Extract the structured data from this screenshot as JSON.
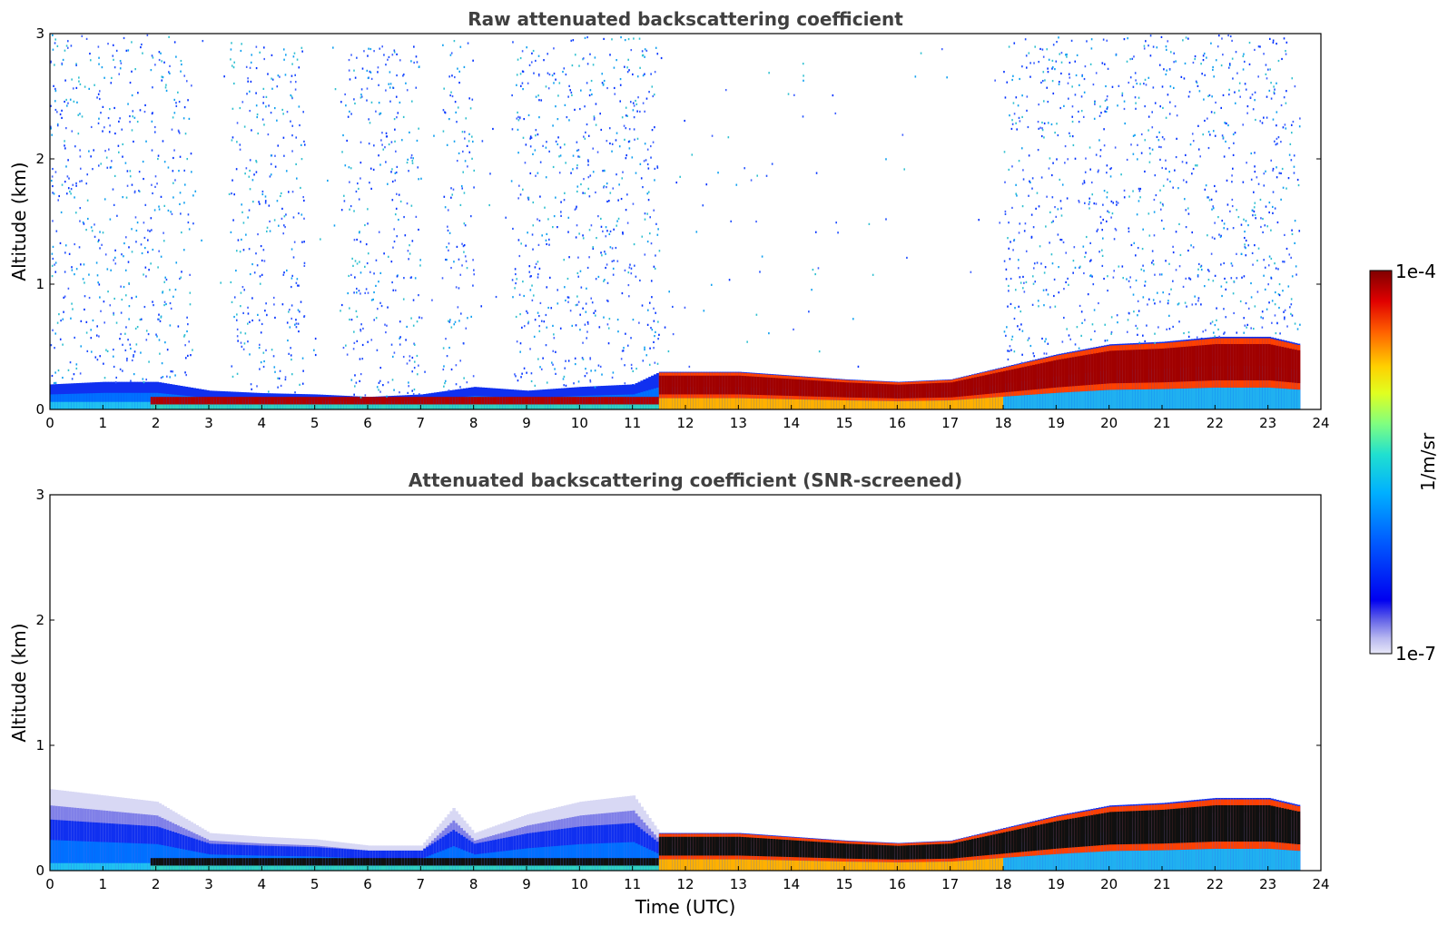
{
  "chart_data": [
    {
      "type": "heatmap",
      "title": "Raw attenuated backscattering coefficient",
      "xlabel": "",
      "ylabel": "Altitude (km)",
      "xlim": [
        0,
        24
      ],
      "ylim": [
        0,
        3
      ],
      "xticks": [
        0,
        1,
        2,
        3,
        4,
        5,
        6,
        7,
        8,
        9,
        10,
        11,
        12,
        13,
        14,
        15,
        16,
        17,
        18,
        19,
        20,
        21,
        22,
        23,
        24
      ],
      "yticks": [
        0,
        1,
        2,
        3
      ],
      "data_end_time_utc": 23.6,
      "layer_top_km": [
        [
          0,
          0.2
        ],
        [
          1,
          0.22
        ],
        [
          2,
          0.22
        ],
        [
          3,
          0.15
        ],
        [
          4,
          0.13
        ],
        [
          5,
          0.12
        ],
        [
          6,
          0.1
        ],
        [
          7,
          0.12
        ],
        [
          8,
          0.18
        ],
        [
          9,
          0.15
        ],
        [
          10,
          0.18
        ],
        [
          11,
          0.2
        ],
        [
          11.5,
          0.3
        ],
        [
          12,
          0.3
        ],
        [
          13,
          0.3
        ],
        [
          14,
          0.27
        ],
        [
          15,
          0.24
        ],
        [
          16,
          0.22
        ],
        [
          17,
          0.24
        ],
        [
          18,
          0.34
        ],
        [
          19,
          0.44
        ],
        [
          20,
          0.52
        ],
        [
          21,
          0.54
        ],
        [
          22,
          0.58
        ],
        [
          23,
          0.58
        ],
        [
          23.6,
          0.52
        ]
      ],
      "noise_description": "speckled background noise up to 3 km, absent around 2.7-3.4, 4.8-5.5, 7.0-7.4, 8.0-8.7 and 11.5-18 UTC"
    },
    {
      "type": "heatmap",
      "title": "Attenuated backscattering coefficient (SNR-screened)",
      "xlabel": "Time (UTC)",
      "ylabel": "Altitude (km)",
      "xlim": [
        0,
        24
      ],
      "ylim": [
        0,
        3
      ],
      "xticks": [
        0,
        1,
        2,
        3,
        4,
        5,
        6,
        7,
        8,
        9,
        10,
        11,
        12,
        13,
        14,
        15,
        16,
        17,
        18,
        19,
        20,
        21,
        22,
        23,
        24
      ],
      "yticks": [
        0,
        1,
        2,
        3
      ],
      "data_end_time_utc": 23.6,
      "layer_top_km": [
        [
          0,
          0.65
        ],
        [
          1,
          0.6
        ],
        [
          2,
          0.55
        ],
        [
          3,
          0.3
        ],
        [
          4,
          0.27
        ],
        [
          5,
          0.25
        ],
        [
          6,
          0.2
        ],
        [
          7,
          0.2
        ],
        [
          7.6,
          0.5
        ],
        [
          8,
          0.3
        ],
        [
          9,
          0.45
        ],
        [
          10,
          0.55
        ],
        [
          11,
          0.6
        ],
        [
          11.5,
          0.3
        ],
        [
          12,
          0.3
        ],
        [
          13,
          0.3
        ],
        [
          14,
          0.27
        ],
        [
          15,
          0.24
        ],
        [
          16,
          0.22
        ],
        [
          17,
          0.24
        ],
        [
          18,
          0.34
        ],
        [
          19,
          0.44
        ],
        [
          20,
          0.52
        ],
        [
          21,
          0.54
        ],
        [
          22,
          0.58
        ],
        [
          23,
          0.58
        ],
        [
          23.6,
          0.52
        ]
      ]
    }
  ],
  "colorbar": {
    "label": "1/m/sr",
    "max_label": "1e-4",
    "min_label": "1e-7",
    "colors": [
      "#e8e8f8",
      "#c8c8f0",
      "#9090e8",
      "#4848e0",
      "#0000f0",
      "#0040ff",
      "#0090ff",
      "#00c0f0",
      "#30e0c0",
      "#80ff80",
      "#d0ff30",
      "#ffe000",
      "#ff9000",
      "#ff3000",
      "#d00000",
      "#800000"
    ]
  }
}
